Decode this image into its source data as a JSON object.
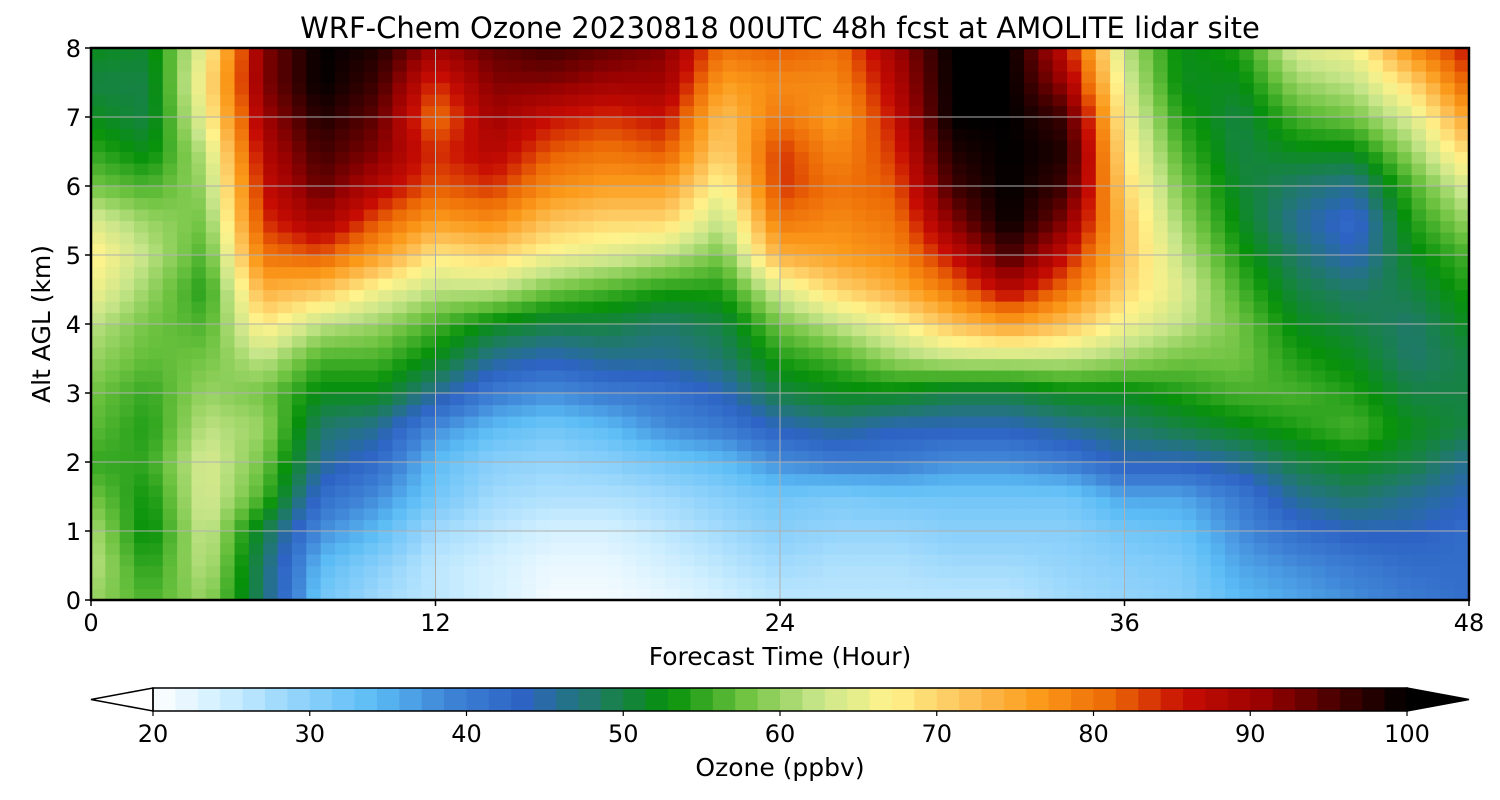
{
  "chart_data": {
    "type": "heatmap",
    "title": "WRF-Chem Ozone  20230818 00UTC 48h fcst at AMOLITE lidar site",
    "xlabel": "Forecast Time (Hour)",
    "ylabel": "Alt AGL (km)",
    "xlim": [
      0,
      48
    ],
    "ylim": [
      0,
      8
    ],
    "xticks": [
      "0",
      "12",
      "24",
      "36",
      "48"
    ],
    "yticks": [
      "0",
      "1",
      "2",
      "3",
      "4",
      "5",
      "6",
      "7",
      "8"
    ],
    "grid": true,
    "value_units": "ppbv",
    "x_hours": [
      0,
      2,
      4,
      6,
      8,
      10,
      12,
      14,
      16,
      18,
      20,
      22,
      24,
      26,
      28,
      30,
      32,
      34,
      36,
      38,
      40,
      42,
      44,
      46,
      48
    ],
    "y_km": [
      0,
      0.5,
      1,
      1.5,
      2,
      2.5,
      3,
      3.5,
      4,
      4.5,
      5,
      5.5,
      6,
      6.5,
      7,
      7.5,
      8
    ],
    "ozone_ppbv_by_hour": [
      [
        60,
        62,
        61,
        58,
        55,
        57,
        58,
        60,
        62,
        66,
        68,
        64,
        58,
        55,
        52,
        50,
        52
      ],
      [
        56,
        54,
        52,
        53,
        55,
        54,
        55,
        57,
        58,
        60,
        62,
        60,
        56,
        52,
        50,
        50,
        51
      ],
      [
        60,
        62,
        63,
        64,
        64,
        62,
        60,
        58,
        56,
        54,
        56,
        58,
        60,
        62,
        66,
        68,
        66
      ],
      [
        48,
        48,
        50,
        56,
        58,
        60,
        58,
        62,
        68,
        74,
        80,
        84,
        86,
        88,
        90,
        92,
        92
      ],
      [
        32,
        34,
        38,
        42,
        46,
        48,
        52,
        56,
        62,
        72,
        82,
        90,
        94,
        96,
        98,
        100,
        100
      ],
      [
        28,
        30,
        34,
        38,
        42,
        46,
        52,
        56,
        60,
        66,
        76,
        82,
        88,
        92,
        94,
        96,
        98
      ],
      [
        26,
        26,
        28,
        32,
        34,
        38,
        46,
        52,
        56,
        62,
        68,
        76,
        82,
        84,
        80,
        84,
        90
      ],
      [
        24,
        24,
        26,
        28,
        30,
        34,
        40,
        46,
        52,
        62,
        70,
        78,
        84,
        88,
        90,
        92,
        94
      ],
      [
        21,
        22,
        24,
        27,
        29,
        32,
        38,
        44,
        50,
        58,
        66,
        72,
        78,
        82,
        86,
        92,
        96
      ],
      [
        21,
        22,
        24,
        27,
        30,
        34,
        40,
        46,
        50,
        56,
        64,
        70,
        76,
        80,
        84,
        90,
        94
      ],
      [
        22,
        24,
        26,
        28,
        32,
        38,
        41,
        46,
        48,
        54,
        62,
        70,
        76,
        82,
        86,
        90,
        92
      ],
      [
        24,
        26,
        28,
        30,
        34,
        40,
        44,
        48,
        50,
        54,
        58,
        62,
        66,
        70,
        72,
        76,
        80
      ],
      [
        26,
        28,
        30,
        32,
        38,
        44,
        50,
        54,
        58,
        64,
        74,
        80,
        84,
        84,
        80,
        78,
        82
      ],
      [
        26,
        27,
        29,
        31,
        40,
        46,
        52,
        56,
        62,
        70,
        76,
        78,
        80,
        78,
        76,
        78,
        80
      ],
      [
        26,
        27,
        29,
        32,
        40,
        44,
        52,
        60,
        66,
        74,
        78,
        80,
        82,
        84,
        86,
        88,
        90
      ],
      [
        26,
        28,
        30,
        32,
        38,
        44,
        50,
        62,
        72,
        80,
        86,
        92,
        96,
        98,
        100,
        100,
        100
      ],
      [
        26,
        28,
        30,
        32,
        38,
        44,
        50,
        62,
        76,
        88,
        96,
        100,
        100,
        100,
        100,
        100,
        100
      ],
      [
        28,
        29,
        30,
        32,
        40,
        46,
        52,
        62,
        72,
        80,
        86,
        92,
        96,
        98,
        96,
        90,
        86
      ],
      [
        29,
        30,
        32,
        36,
        44,
        48,
        52,
        60,
        66,
        70,
        72,
        72,
        70,
        68,
        66,
        64,
        62
      ],
      [
        30,
        31,
        33,
        36,
        44,
        50,
        54,
        58,
        62,
        64,
        62,
        60,
        58,
        56,
        54,
        52,
        52
      ],
      [
        34,
        36,
        38,
        40,
        46,
        52,
        56,
        58,
        58,
        56,
        54,
        52,
        51,
        50,
        50,
        52,
        54
      ],
      [
        36,
        38,
        42,
        46,
        50,
        54,
        56,
        54,
        52,
        50,
        48,
        46,
        48,
        52,
        56,
        60,
        64
      ],
      [
        38,
        40,
        44,
        48,
        52,
        56,
        54,
        52,
        50,
        48,
        44,
        42,
        46,
        52,
        58,
        62,
        66
      ],
      [
        40,
        42,
        44,
        46,
        50,
        52,
        50,
        48,
        48,
        50,
        52,
        54,
        56,
        60,
        64,
        70,
        78
      ],
      [
        42,
        42,
        42,
        44,
        46,
        50,
        50,
        50,
        52,
        54,
        56,
        60,
        64,
        70,
        76,
        82,
        86
      ]
    ],
    "colorbar": {
      "label": "Ozone  (ppbv)",
      "min": 20,
      "max": 100,
      "ticks": [
        "20",
        "30",
        "40",
        "50",
        "60",
        "70",
        "80",
        "90",
        "100"
      ],
      "extend": "both",
      "colors": [
        "#ffffff",
        "#cdeeff",
        "#8fd2fb",
        "#5bbcf5",
        "#3f84d6",
        "#2d63c4",
        "#1f7a66",
        "#07910a",
        "#6cc23f",
        "#c7e58a",
        "#fff38c",
        "#fdc35a",
        "#fb9a1a",
        "#ec6805",
        "#c60c03",
        "#9b0201",
        "#4b0000",
        "#000000"
      ]
    }
  }
}
